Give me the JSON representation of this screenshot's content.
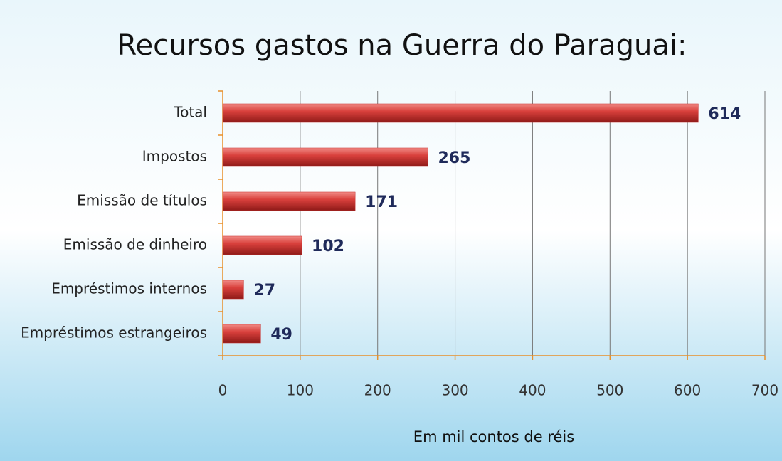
{
  "chart_data": {
    "type": "bar",
    "orientation": "horizontal",
    "title": "Recursos gastos na Guerra do Paraguai:",
    "x_label": "Em mil contos de réis",
    "categories": [
      "Total",
      "Impostos",
      "Emissão de títulos",
      "Emissão de dinheiro",
      "Empréstimos internos",
      "Empréstimos estrangeiros"
    ],
    "values": [
      614,
      265,
      171,
      102,
      27,
      49
    ],
    "color": "#c8302e",
    "xlim": [
      0,
      700
    ],
    "xticks": [
      0,
      100,
      200,
      300,
      400,
      500,
      600,
      700
    ],
    "grid": true
  }
}
